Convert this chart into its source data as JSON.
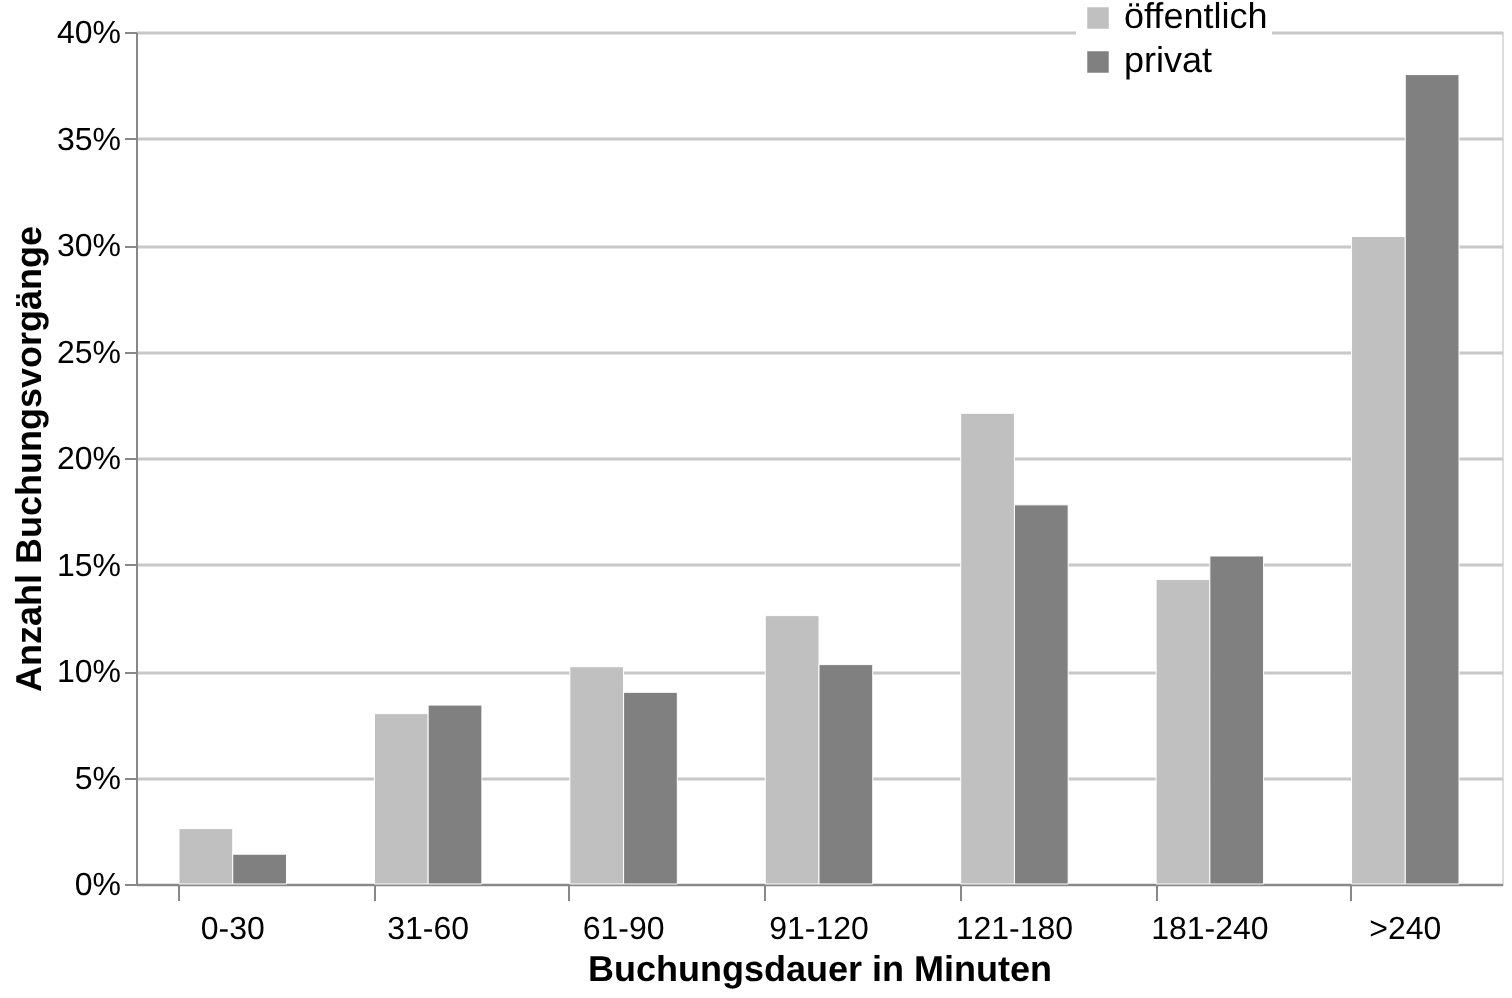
{
  "chart_data": {
    "type": "bar",
    "xlabel": "Buchungsdauer in Minuten",
    "ylabel": "Anzahl Buchungsvorgänge",
    "categories": [
      "0-30",
      "31-60",
      "61-90",
      "91-120",
      "121-180",
      "181-240",
      ">240"
    ],
    "series": [
      {
        "name": "öffentlich",
        "color": "#c0c0c0",
        "values": [
          2.6,
          8.0,
          10.2,
          12.6,
          22.1,
          14.3,
          30.4
        ]
      },
      {
        "name": "privat",
        "color": "#808080",
        "values": [
          1.4,
          8.4,
          9.0,
          10.3,
          17.8,
          15.4,
          38.0
        ]
      }
    ],
    "ylim": [
      0,
      40
    ],
    "yticks": [
      {
        "value": 0,
        "label": "0%"
      },
      {
        "value": 5,
        "label": "5%"
      },
      {
        "value": 10,
        "label": "10%"
      },
      {
        "value": 15,
        "label": "15%"
      },
      {
        "value": 20,
        "label": "20%"
      },
      {
        "value": 25,
        "label": "25%"
      },
      {
        "value": 30,
        "label": "30%"
      },
      {
        "value": 35,
        "label": "35%"
      },
      {
        "value": 40,
        "label": "40%"
      }
    ],
    "grid": "y",
    "legend": "top right"
  }
}
